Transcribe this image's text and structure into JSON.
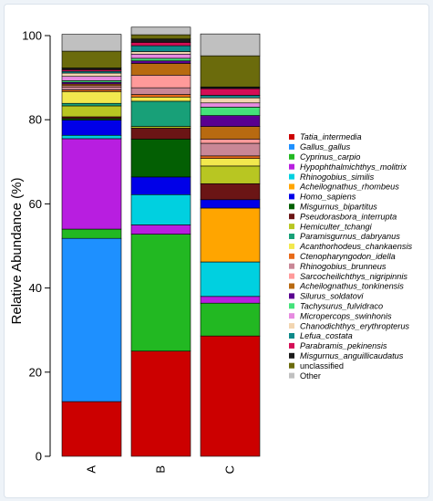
{
  "chart_data": {
    "type": "stacked-bar",
    "ylabel": "Relative Abundance (%)",
    "ylim": [
      0,
      100
    ],
    "yticks": [
      0,
      20,
      40,
      60,
      80,
      100
    ],
    "grid": false,
    "legend_position": "right",
    "categories": [
      "A",
      "B",
      "C"
    ],
    "series": [
      {
        "name": "Tatia_intermedia",
        "color": "#cc0000",
        "values": [
          13.0,
          25.0,
          28.6
        ]
      },
      {
        "name": "Gallus_gallus",
        "color": "#1e90ff",
        "values": [
          38.8,
          0.0,
          0.0
        ]
      },
      {
        "name": "Cyprinus_carpio",
        "color": "#22b822",
        "values": [
          2.2,
          27.8,
          7.8
        ]
      },
      {
        "name": "Hypophthalmichthys_molitrix",
        "color": "#b81ee0",
        "values": [
          21.5,
          2.2,
          1.6
        ]
      },
      {
        "name": "Rhinogobius_similis",
        "color": "#00d0e0",
        "values": [
          0.8,
          7.2,
          8.2
        ]
      },
      {
        "name": "Acheilognathus_rhombeus",
        "color": "#ffa500",
        "values": [
          0.0,
          0.0,
          12.8
        ]
      },
      {
        "name": "Homo_sapiens",
        "color": "#0000e8",
        "values": [
          3.6,
          4.2,
          2.0
        ]
      },
      {
        "name": "Misgurnus_bipartitus",
        "color": "#035f03",
        "values": [
          0.4,
          9.0,
          0.0
        ]
      },
      {
        "name": "Pseudorasbora_interrupta",
        "color": "#6b1515",
        "values": [
          0.4,
          2.6,
          3.8
        ]
      },
      {
        "name": "Hemiculter_tchangi",
        "color": "#b8c622",
        "values": [
          2.6,
          0.4,
          4.2
        ]
      },
      {
        "name": "Paramisgurnus_dabryanus",
        "color": "#18a078",
        "values": [
          0.6,
          6.0,
          0.0
        ]
      },
      {
        "name": "Acanthorhodeus_chankaensis",
        "color": "#f2e84e",
        "values": [
          2.8,
          1.0,
          1.8
        ]
      },
      {
        "name": "Ctenopharyngodon_idella",
        "color": "#e86a18",
        "values": [
          0.4,
          0.6,
          0.6
        ]
      },
      {
        "name": "Rhinogobius_brunneus",
        "color": "#c98796",
        "values": [
          0.6,
          1.6,
          3.0
        ]
      },
      {
        "name": "Sarcocheilichthys_nigripinnis",
        "color": "#ff9a9a",
        "values": [
          0.4,
          3.0,
          1.0
        ]
      },
      {
        "name": "Acheilognathus_tonkinensis",
        "color": "#b86a10",
        "values": [
          0.4,
          2.8,
          3.0
        ]
      },
      {
        "name": "Silurus_soldatovi",
        "color": "#5a0090",
        "values": [
          0.4,
          0.6,
          2.6
        ]
      },
      {
        "name": "Tachysurus_fulvidraco",
        "color": "#44e27a",
        "values": [
          0.4,
          0.6,
          2.0
        ]
      },
      {
        "name": "Micropercops_swinhonis",
        "color": "#e68ae0",
        "values": [
          1.0,
          1.0,
          1.0
        ]
      },
      {
        "name": "Chanodichthys_erythropterus",
        "color": "#f2d5b0",
        "values": [
          0.8,
          0.6,
          1.2
        ]
      },
      {
        "name": "Lefua_costata",
        "color": "#0e8a8a",
        "values": [
          0.4,
          1.4,
          0.6
        ]
      },
      {
        "name": "Parabramis_pekinensis",
        "color": "#d40e56",
        "values": [
          0.4,
          0.8,
          1.6
        ]
      },
      {
        "name": "Misgurnus_anguillicaudatus",
        "color": "#1a1a1a",
        "values": [
          0.4,
          0.8,
          0.4
        ]
      },
      {
        "name": "unclassified",
        "color": "#6b6b0c",
        "values": [
          4.0,
          1.0,
          7.4
        ]
      },
      {
        "name": "Other",
        "color": "#c0c0c0",
        "values": [
          4.0,
          1.8,
          5.2
        ]
      }
    ]
  }
}
